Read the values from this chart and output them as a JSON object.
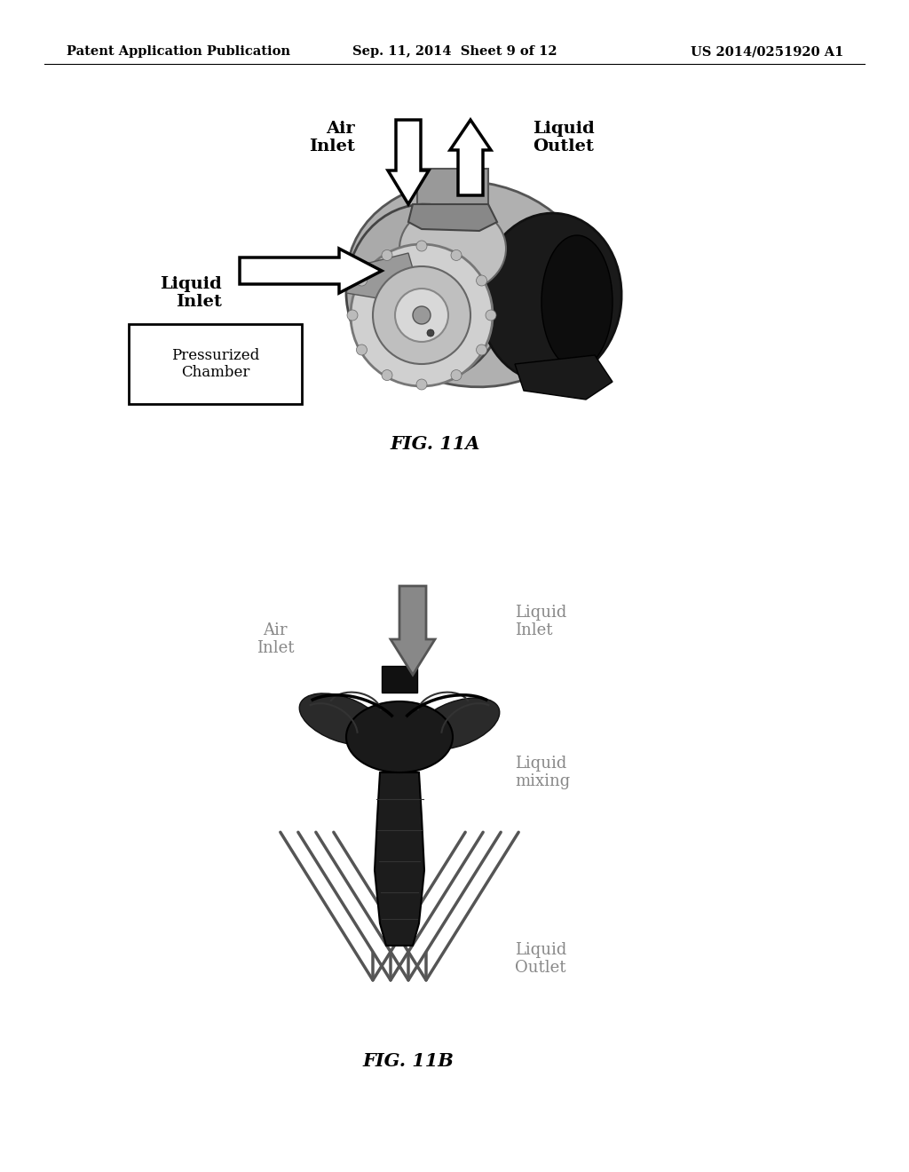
{
  "bg_color": "#ffffff",
  "header_left": "Patent Application Publication",
  "header_center": "Sep. 11, 2014  Sheet 9 of 12",
  "header_right": "US 2014/0251920 A1",
  "header_fontsize": 10.5,
  "fig11a_caption": "FIG. 11A",
  "fig11b_caption": "FIG. 11B",
  "caption_fontsize": 15,
  "air_inlet_label": "Air\nInlet",
  "liquid_outlet_label": "Liquid\nOutlet",
  "liquid_inlet_label": "Liquid\nInlet",
  "pressurized_chamber_label": "Pressurized\nChamber",
  "air_inlet_b_label": "Air\nInlet",
  "liquid_inlet_b_label": "Liquid\nInlet",
  "liquid_mixing_label": "Liquid\nmixing",
  "liquid_outlet_b_label": "Liquid\nOutlet"
}
